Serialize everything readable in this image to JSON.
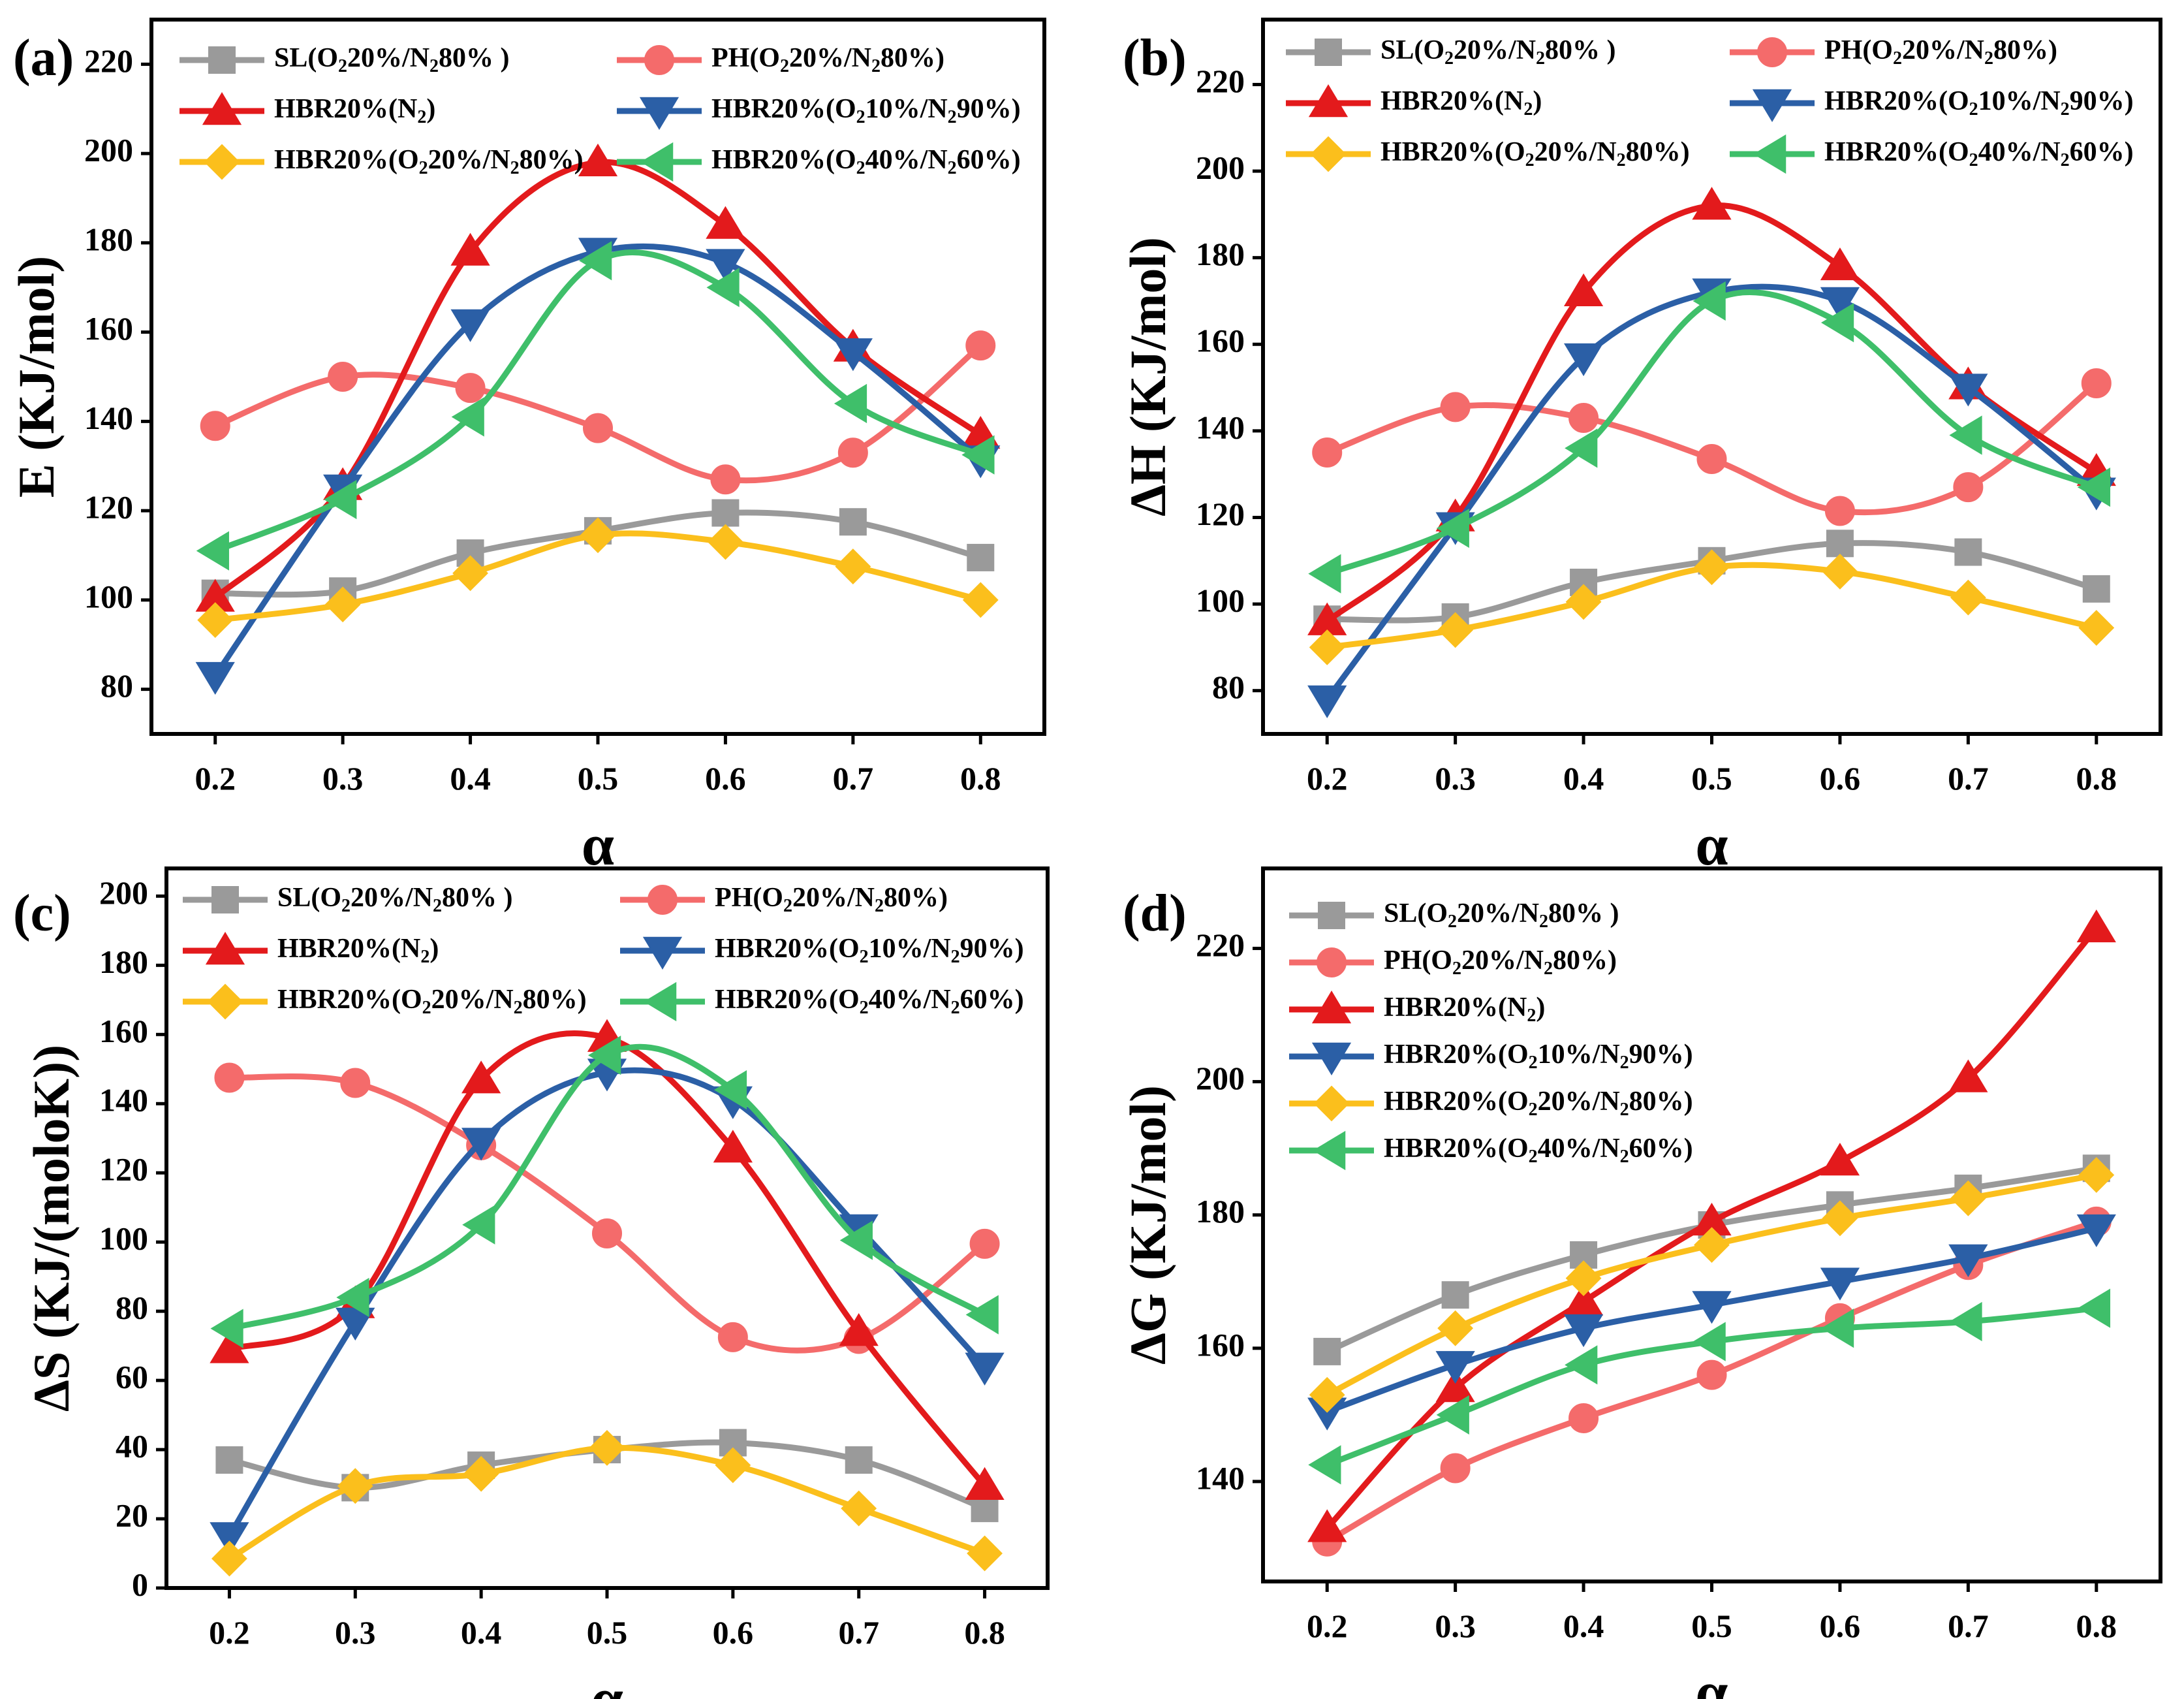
{
  "figure": {
    "series_styles": {
      "SL": {
        "color": "#9a9a9a",
        "marker": "square"
      },
      "PH": {
        "color": "#f46b6b",
        "marker": "circle"
      },
      "N2": {
        "color": "#e31a1c",
        "marker": "triangle-up"
      },
      "O10": {
        "color": "#2b5fa6",
        "marker": "triangle-down"
      },
      "O20": {
        "color": "#fbbf1c",
        "marker": "diamond"
      },
      "O40": {
        "color": "#3fbf6a",
        "marker": "triangle-left"
      }
    }
  },
  "chart_data": [
    {
      "panel": "(a)",
      "type": "line",
      "xlabel": "α",
      "ylabel": "E (KJ/mol)",
      "x": [
        0.2,
        0.3,
        0.4,
        0.5,
        0.6,
        0.7,
        0.8
      ],
      "xticks": [
        "0.2",
        "0.3",
        "0.4",
        "0.5",
        "0.6",
        "0.7",
        "0.8"
      ],
      "xlim": [
        0.15,
        0.85
      ],
      "ylim": [
        70,
        230
      ],
      "yticks": [
        "80",
        "100",
        "120",
        "140",
        "160",
        "180",
        "200",
        "220"
      ],
      "ytick_values": [
        80,
        100,
        120,
        140,
        160,
        180,
        200,
        220
      ],
      "legend_layout": "two-column",
      "series": [
        {
          "key": "SL",
          "name_main": "SL(O",
          "name_parts": [
            "SL(O",
            "2",
            "20%/N",
            "2",
            "80% )"
          ],
          "values": [
            101.5,
            102,
            110.5,
            115.5,
            119.5,
            117.5,
            109.5
          ]
        },
        {
          "key": "PH",
          "name_parts": [
            "PH(O",
            "2",
            "20%/N",
            "2",
            "80%)"
          ],
          "values": [
            139,
            150,
            147.5,
            138.5,
            127,
            133,
            157
          ]
        },
        {
          "key": "N2",
          "name_parts": [
            "HBR20%(N",
            "2",
            ")"
          ],
          "values": [
            100.5,
            125.5,
            178,
            198,
            184,
            156.5,
            137
          ]
        },
        {
          "key": "O10",
          "name_parts": [
            "HBR20%(O",
            "2",
            "10%/N",
            "2",
            "90%)"
          ],
          "values": [
            83,
            125,
            162,
            178,
            175.5,
            155.5,
            131.5
          ]
        },
        {
          "key": "O20",
          "name_parts": [
            "HBR20%(O",
            "2",
            "20%/N",
            "2",
            "80%)"
          ],
          "values": [
            95.5,
            99,
            106,
            114.5,
            113,
            107.5,
            100
          ]
        },
        {
          "key": "O40",
          "name_parts": [
            "HBR20%(O",
            "2",
            "40%/N",
            "2",
            "60%)"
          ],
          "values": [
            111,
            122.5,
            141,
            176,
            170,
            144,
            132.5
          ]
        }
      ]
    },
    {
      "panel": "(b)",
      "type": "line",
      "xlabel": "α",
      "ylabel": "ΔH (KJ/mol)",
      "x": [
        0.2,
        0.3,
        0.4,
        0.5,
        0.6,
        0.7,
        0.8
      ],
      "xticks": [
        "0.2",
        "0.3",
        "0.4",
        "0.5",
        "0.6",
        "0.7",
        "0.8"
      ],
      "xlim": [
        0.15,
        0.85
      ],
      "ylim": [
        70,
        235
      ],
      "yticks": [
        "80",
        "100",
        "120",
        "140",
        "160",
        "180",
        "200",
        "220"
      ],
      "ytick_values": [
        80,
        100,
        120,
        140,
        160,
        180,
        200,
        220
      ],
      "legend_layout": "two-column",
      "series": [
        {
          "key": "SL",
          "name_parts": [
            "SL(O",
            "2",
            "20%/N",
            "2",
            "80% )"
          ],
          "values": [
            96.5,
            97,
            105,
            110,
            114,
            112,
            103.5
          ]
        },
        {
          "key": "PH",
          "name_parts": [
            "PH(O",
            "2",
            "20%/N",
            "2",
            "80%)"
          ],
          "values": [
            135,
            145.5,
            143,
            133.5,
            121.5,
            127,
            151
          ]
        },
        {
          "key": "N2",
          "name_parts": [
            "HBR20%(N",
            "2",
            ")"
          ],
          "values": [
            96,
            120,
            172,
            192,
            178,
            150.5,
            130.5
          ]
        },
        {
          "key": "O10",
          "name_parts": [
            "HBR20%(O",
            "2",
            "10%/N",
            "2",
            "90%)"
          ],
          "values": [
            78,
            118,
            157,
            172,
            170,
            150,
            126
          ]
        },
        {
          "key": "O20",
          "name_parts": [
            "HBR20%(O",
            "2",
            "20%/N",
            "2",
            "80%)"
          ],
          "values": [
            90,
            94,
            100.5,
            108.5,
            107.5,
            101.5,
            94.5
          ]
        },
        {
          "key": "O40",
          "name_parts": [
            "HBR20%(O",
            "2",
            "40%/N",
            "2",
            "60%)"
          ],
          "values": [
            107,
            117.5,
            136,
            170,
            165,
            139,
            127
          ]
        }
      ]
    },
    {
      "panel": "(c)",
      "type": "line",
      "xlabel": "α",
      "ylabel": "ΔS (KJ/(moloK))",
      "x": [
        0.2,
        0.3,
        0.4,
        0.5,
        0.6,
        0.7,
        0.8
      ],
      "xticks": [
        "0.2",
        "0.3",
        "0.4",
        "0.5",
        "0.6",
        "0.7",
        "0.8"
      ],
      "xlim": [
        0.15,
        0.85
      ],
      "ylim": [
        0,
        208
      ],
      "yticks": [
        "0",
        "20",
        "40",
        "60",
        "80",
        "100",
        "120",
        "140",
        "160",
        "180",
        "200"
      ],
      "ytick_values": [
        0,
        20,
        40,
        60,
        80,
        100,
        120,
        140,
        160,
        180,
        200
      ],
      "legend_layout": "two-column",
      "series": [
        {
          "key": "SL",
          "name_parts": [
            "SL(O",
            "2",
            "20%/N",
            "2",
            "80% )"
          ],
          "values": [
            37,
            29,
            35.5,
            40,
            42,
            37,
            23
          ]
        },
        {
          "key": "PH",
          "name_parts": [
            "PH(O",
            "2",
            "20%/N",
            "2",
            "80%)"
          ],
          "values": [
            147.5,
            146,
            128,
            102.5,
            72.5,
            72,
            99.5
          ]
        },
        {
          "key": "N2",
          "name_parts": [
            "HBR20%(N",
            "2",
            ")"
          ],
          "values": [
            69,
            82,
            147,
            159,
            127,
            74,
            29.5
          ]
        },
        {
          "key": "O10",
          "name_parts": [
            "HBR20%(O",
            "2",
            "10%/N",
            "2",
            "90%)"
          ],
          "values": [
            15,
            77,
            129,
            149,
            141,
            104,
            64
          ]
        },
        {
          "key": "O20",
          "name_parts": [
            "HBR20%(O",
            "2",
            "20%/N",
            "2",
            "80%)"
          ],
          "values": [
            8.5,
            29.5,
            33,
            40.5,
            35.5,
            23,
            10
          ]
        },
        {
          "key": "O40",
          "name_parts": [
            "HBR20%(O",
            "2",
            "40%/N",
            "2",
            "60%)"
          ],
          "values": [
            75,
            84,
            105,
            154,
            144,
            100.5,
            79
          ]
        }
      ]
    },
    {
      "panel": "(d)",
      "type": "line",
      "xlabel": "α",
      "ylabel": "ΔG (KJ/mol)",
      "x": [
        0.2,
        0.3,
        0.4,
        0.5,
        0.6,
        0.7,
        0.8
      ],
      "xticks": [
        "0.2",
        "0.3",
        "0.4",
        "0.5",
        "0.6",
        "0.7",
        "0.8"
      ],
      "xlim": [
        0.15,
        0.85
      ],
      "ylim": [
        125,
        232
      ],
      "yticks": [
        "140",
        "160",
        "180",
        "200",
        "220"
      ],
      "ytick_values": [
        140,
        160,
        180,
        200,
        220
      ],
      "legend_layout": "one-column",
      "series": [
        {
          "key": "SL",
          "name_parts": [
            "SL(O",
            "2",
            "20%/N",
            "2",
            "80% )"
          ],
          "values": [
            159.5,
            168,
            174,
            178.5,
            181.5,
            184,
            187
          ]
        },
        {
          "key": "PH",
          "name_parts": [
            "PH(O",
            "2",
            "20%/N",
            "2",
            "80%)"
          ],
          "values": [
            131,
            142,
            149.5,
            156,
            164.5,
            172.5,
            179
          ]
        },
        {
          "key": "N2",
          "name_parts": [
            "HBR20%(N",
            "2",
            ")"
          ],
          "values": [
            133,
            154,
            167,
            179,
            188,
            200.5,
            223
          ]
        },
        {
          "key": "O10",
          "name_parts": [
            "HBR20%(O",
            "2",
            "10%/N",
            "2",
            "90%)"
          ],
          "values": [
            150.5,
            157.5,
            163,
            166.5,
            170,
            173.5,
            178
          ]
        },
        {
          "key": "O20",
          "name_parts": [
            "HBR20%(O",
            "2",
            "20%/N",
            "2",
            "80%)"
          ],
          "values": [
            153,
            163,
            170.5,
            175.5,
            179.5,
            182.5,
            186
          ]
        },
        {
          "key": "O40",
          "name_parts": [
            "HBR20%(O",
            "2",
            "40%/N",
            "2",
            "60%)"
          ],
          "values": [
            142.5,
            150,
            157.5,
            161,
            163,
            164,
            166
          ]
        }
      ]
    }
  ]
}
